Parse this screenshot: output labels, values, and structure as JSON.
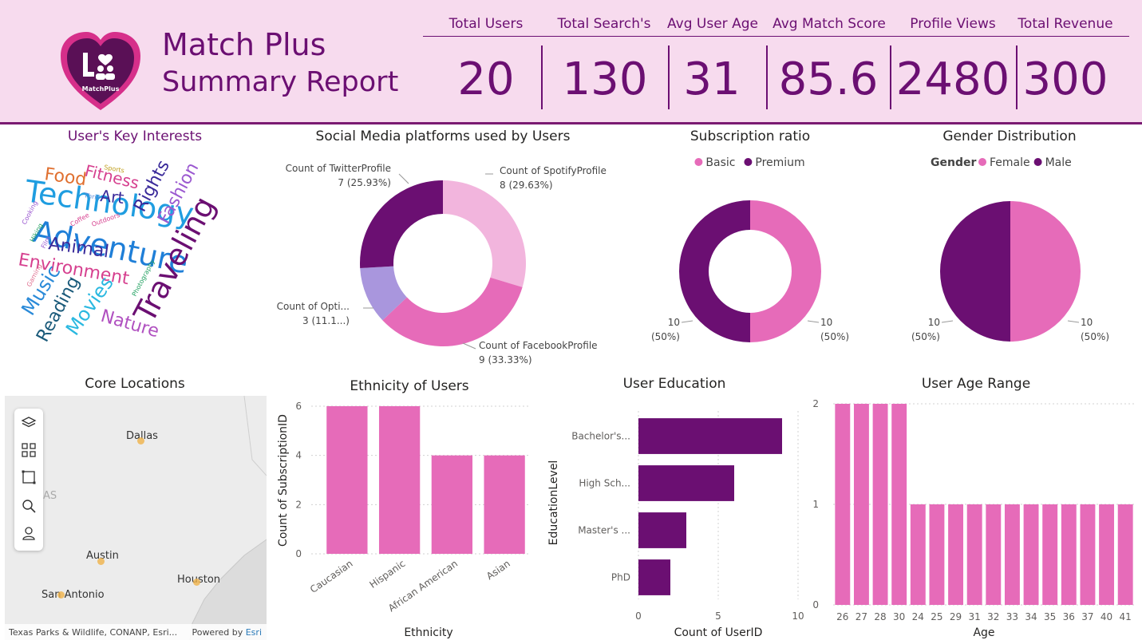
{
  "header": {
    "title": "Match Plus",
    "subtitle": "Summary Report",
    "logo_text": "MatchPlus"
  },
  "kpis": [
    {
      "label": "Total Users",
      "value": "20"
    },
    {
      "label": "Total Search's",
      "value": "130"
    },
    {
      "label": "Avg User Age",
      "value": "31"
    },
    {
      "label": "Avg Match Score",
      "value": "85.6"
    },
    {
      "label": "Profile Views",
      "value": "2480"
    },
    {
      "label": "Total Revenue",
      "value": "300"
    }
  ],
  "colors": {
    "dark_purple": "#6b0f72",
    "pink": "#e66bb9",
    "light_pink": "#f2b5dd",
    "lavender": "#a996dd",
    "header_bg": "#f7dbee"
  },
  "wordcloud": {
    "title": "User's Key Interests",
    "words": [
      {
        "text": "Technology",
        "weight": 5,
        "color": "#1f9de0"
      },
      {
        "text": "Adventure",
        "weight": 5,
        "color": "#1f7fd8"
      },
      {
        "text": "Traveling",
        "weight": 5,
        "color": "#6b0f72"
      },
      {
        "text": "Environment",
        "weight": 3,
        "color": "#d6408f"
      },
      {
        "text": "Fashion",
        "weight": 3,
        "color": "#9b59d0"
      },
      {
        "text": "Rights",
        "weight": 3,
        "color": "#3a2a9a"
      },
      {
        "text": "Animal",
        "weight": 3,
        "color": "#3a2a9a"
      },
      {
        "text": "Music",
        "weight": 3,
        "color": "#2a8ad8"
      },
      {
        "text": "Reading",
        "weight": 3,
        "color": "#1a5a7a"
      },
      {
        "text": "Movies",
        "weight": 3,
        "color": "#2ab8e0"
      },
      {
        "text": "Nature",
        "weight": 3,
        "color": "#b050c0"
      },
      {
        "text": "Food",
        "weight": 2,
        "color": "#e07030"
      },
      {
        "text": "Fitness",
        "weight": 2,
        "color": "#d6408f"
      },
      {
        "text": "Art",
        "weight": 2,
        "color": "#3a2a9a"
      },
      {
        "text": "Sports",
        "weight": 1,
        "color": "#c0a020"
      },
      {
        "text": "Thrill",
        "weight": 1,
        "color": "#5a8ad8"
      },
      {
        "text": "Cooking",
        "weight": 1,
        "color": "#9b59d0"
      },
      {
        "text": "Coffee",
        "weight": 1,
        "color": "#d6408f"
      },
      {
        "text": "Outdoors",
        "weight": 1,
        "color": "#d6408f"
      },
      {
        "text": "Hiking",
        "weight": 1,
        "color": "#20a060"
      },
      {
        "text": "Film",
        "weight": 1,
        "color": "#9b59d0"
      },
      {
        "text": "Gaming",
        "weight": 1,
        "color": "#e07090"
      },
      {
        "text": "Photography",
        "weight": 1,
        "color": "#20a060"
      }
    ]
  },
  "map": {
    "title": "Core Locations",
    "cities": [
      "Dallas",
      "Austin",
      "Houston",
      "San Antonio"
    ],
    "state_partial": "AS",
    "attribution": "Texas Parks & Wildlife, CONANP, Esri...",
    "powered_by": "Powered by",
    "powered_by_brand": "Esri",
    "tools": [
      "layers-icon",
      "qr-select-icon",
      "rect-select-icon",
      "search-icon",
      "person-icon"
    ]
  },
  "chart_data": [
    {
      "type": "pie",
      "variant": "donut",
      "title": "Social Media platforms used by Users",
      "slices": [
        {
          "label": "Count of SpotifyProfile",
          "value": 8,
          "pct": "29.63%",
          "color": "#f2b5dd"
        },
        {
          "label": "Count of FacebookProfile",
          "value": 9,
          "pct": "33.33%",
          "color": "#e66bb9"
        },
        {
          "label": "Count of Opti...",
          "value": 3,
          "pct": "11.1...",
          "color": "#a996dd"
        },
        {
          "label": "Count of TwitterProfile",
          "value": 7,
          "pct": "25.93%",
          "color": "#6b0f72"
        }
      ]
    },
    {
      "type": "pie",
      "variant": "donut",
      "title": "Subscription ratio",
      "legend_title": "",
      "legend_position": "top-center",
      "slices": [
        {
          "label": "Basic",
          "value": 10,
          "pct": "50%",
          "color": "#e66bb9"
        },
        {
          "label": "Premium",
          "value": 10,
          "pct": "50%",
          "color": "#6b0f72"
        }
      ]
    },
    {
      "type": "pie",
      "title": "Gender Distribution",
      "legend_title": "Gender",
      "legend_position": "top-center",
      "slices": [
        {
          "label": "Female",
          "value": 10,
          "pct": "50%",
          "color": "#e66bb9"
        },
        {
          "label": "Male",
          "value": 10,
          "pct": "50%",
          "color": "#6b0f72"
        }
      ]
    },
    {
      "type": "bar",
      "title": "Ethnicity of Users",
      "categories": [
        "Caucasian",
        "Hispanic",
        "African American",
        "Asian"
      ],
      "values": [
        6,
        6,
        4,
        4
      ],
      "xlabel": "Ethnicity",
      "ylabel": "Count of SubscriptionID",
      "ylim": [
        0,
        6
      ],
      "yticks": [
        0,
        2,
        4,
        6
      ],
      "grid": true,
      "color": "#e66bb9"
    },
    {
      "type": "bar",
      "orientation": "horizontal",
      "title": "User Education",
      "categories": [
        "Bachelor's...",
        "High Sch...",
        "Master's ...",
        "PhD"
      ],
      "values": [
        9,
        6,
        3,
        2
      ],
      "xlabel": "Count of UserID",
      "ylabel": "EducationLevel",
      "xlim": [
        0,
        10
      ],
      "xticks": [
        0,
        5,
        10
      ],
      "grid": true,
      "color": "#6b0f72"
    },
    {
      "type": "bar",
      "title": "User Age Range",
      "categories": [
        "26",
        "27",
        "28",
        "30",
        "24",
        "25",
        "29",
        "31",
        "32",
        "33",
        "34",
        "35",
        "36",
        "37",
        "40",
        "41"
      ],
      "values": [
        2,
        2,
        2,
        2,
        1,
        1,
        1,
        1,
        1,
        1,
        1,
        1,
        1,
        1,
        1,
        1
      ],
      "xlabel": "Age",
      "ylabel": "",
      "ylim": [
        0,
        2
      ],
      "yticks": [
        0,
        1,
        2
      ],
      "grid": true,
      "color": "#e66bb9"
    }
  ]
}
